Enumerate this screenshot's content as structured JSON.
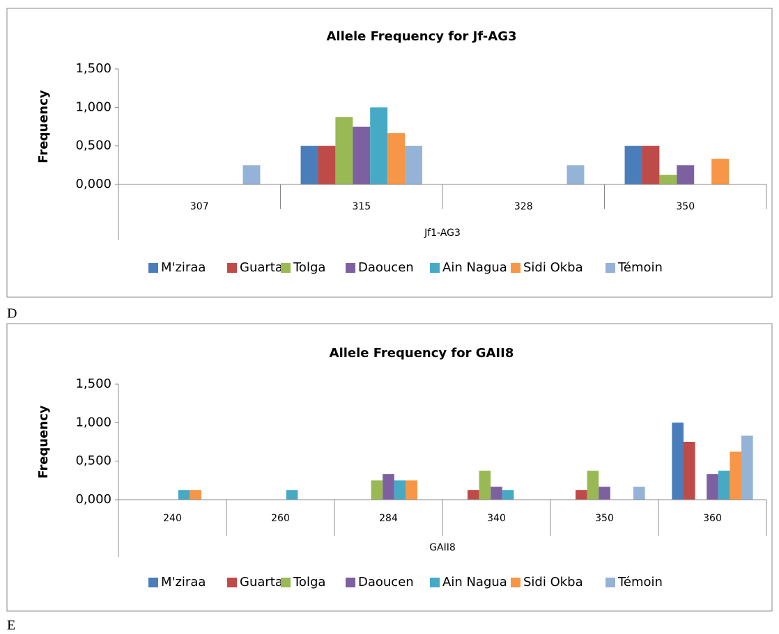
{
  "chart_data": [
    {
      "type": "bar",
      "title": "Allele Frequency for Jf-AG3",
      "y_label": "Frequency",
      "x_label": "Jf1-AG3",
      "categories": [
        "307",
        "315",
        "328",
        "350"
      ],
      "ylim": [
        0,
        1.5
      ],
      "yticks": [
        {
          "value": 0,
          "label": "0,000"
        },
        {
          "value": 0.5,
          "label": "0,500"
        },
        {
          "value": 1,
          "label": "1,000"
        },
        {
          "value": 1.5,
          "label": "1,500"
        }
      ],
      "series": [
        {
          "name": "M'ziraa",
          "color": "#4a7ebb",
          "values": [
            0,
            0.5,
            0,
            0.5
          ]
        },
        {
          "name": "Guarta",
          "color": "#be4b48",
          "values": [
            0,
            0.5,
            0,
            0.5
          ]
        },
        {
          "name": "Tolga",
          "color": "#98b954",
          "values": [
            0,
            0.875,
            0,
            0.125
          ]
        },
        {
          "name": "Daoucen",
          "color": "#7d60a0",
          "values": [
            0,
            0.75,
            0,
            0.25
          ]
        },
        {
          "name": "Ain Nagua",
          "color": "#46aac5",
          "values": [
            0,
            1.0,
            0,
            0
          ]
        },
        {
          "name": "Sidi Okba",
          "color": "#f79646",
          "values": [
            0,
            0.667,
            0,
            0.333
          ]
        },
        {
          "name": "Témoin",
          "color": "#95b3d7",
          "values": [
            0.25,
            0.5,
            0.25,
            0
          ]
        }
      ]
    },
    {
      "type": "bar",
      "title": "Allele Frequency for GAII8",
      "y_label": "Frequency",
      "x_label": "GAII8",
      "categories": [
        "240",
        "260",
        "284",
        "340",
        "350",
        "360"
      ],
      "ylim": [
        0,
        1.5
      ],
      "yticks": [
        {
          "value": 0,
          "label": "0,000"
        },
        {
          "value": 0.5,
          "label": "0,500"
        },
        {
          "value": 1,
          "label": "1,000"
        },
        {
          "value": 1.5,
          "label": "1,500"
        }
      ],
      "series": [
        {
          "name": "M'ziraa",
          "color": "#4a7ebb",
          "values": [
            0,
            0,
            0,
            0,
            0,
            1.0
          ]
        },
        {
          "name": "Guarta",
          "color": "#be4b48",
          "values": [
            0,
            0,
            0,
            0.125,
            0.125,
            0.75
          ]
        },
        {
          "name": "Tolga",
          "color": "#98b954",
          "values": [
            0,
            0,
            0.25,
            0.375,
            0.375,
            0
          ]
        },
        {
          "name": "Daoucen",
          "color": "#7d60a0",
          "values": [
            0,
            0,
            0.333,
            0.167,
            0.167,
            0.333
          ]
        },
        {
          "name": "Ain Nagua",
          "color": "#46aac5",
          "values": [
            0.125,
            0.125,
            0.25,
            0.125,
            0,
            0.375
          ]
        },
        {
          "name": "Sidi Okba",
          "color": "#f79646",
          "values": [
            0.125,
            0,
            0.25,
            0,
            0,
            0.625
          ]
        },
        {
          "name": "Témoin",
          "color": "#95b3d7",
          "values": [
            0,
            0,
            0,
            0,
            0.167,
            0.833
          ]
        }
      ]
    }
  ],
  "captions": [
    "D",
    "E"
  ]
}
